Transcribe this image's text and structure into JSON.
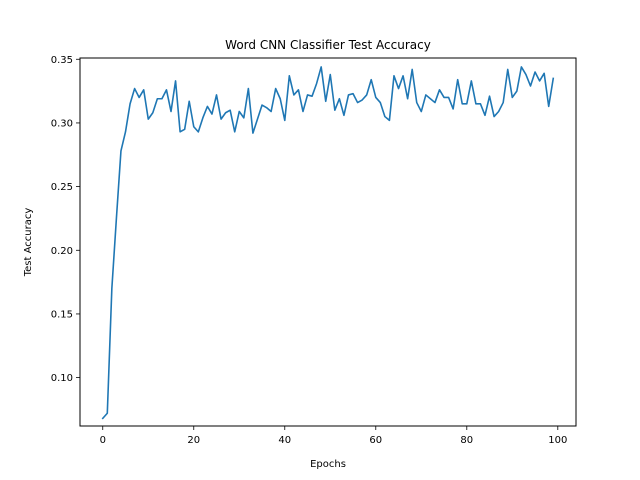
{
  "chart_data": {
    "type": "line",
    "title": "Word CNN Classifier Test Accuracy",
    "xlabel": "Epochs",
    "ylabel": "Test Accuracy",
    "xlim": [
      -5,
      104
    ],
    "ylim": [
      0.062,
      0.351
    ],
    "xticks": [
      0,
      20,
      40,
      60,
      80,
      100
    ],
    "yticks": [
      0.1,
      0.15,
      0.2,
      0.25,
      0.3,
      0.35
    ],
    "xtick_labels": [
      "0",
      "20",
      "40",
      "60",
      "80",
      "100"
    ],
    "ytick_labels": [
      "0.10",
      "0.15",
      "0.20",
      "0.25",
      "0.30",
      "0.35"
    ],
    "grid": false,
    "series": [
      {
        "color": "#1f77b4",
        "x": [
          0,
          1,
          2,
          3,
          4,
          5,
          6,
          7,
          8,
          9,
          10,
          11,
          12,
          13,
          14,
          15,
          16,
          17,
          18,
          19,
          20,
          21,
          22,
          23,
          24,
          25,
          26,
          27,
          28,
          29,
          30,
          31,
          32,
          33,
          34,
          35,
          36,
          37,
          38,
          39,
          40,
          41,
          42,
          43,
          44,
          45,
          46,
          47,
          48,
          49,
          50,
          51,
          52,
          53,
          54,
          55,
          56,
          57,
          58,
          59,
          60,
          61,
          62,
          63,
          64,
          65,
          66,
          67,
          68,
          69,
          70,
          71,
          72,
          73,
          74,
          75,
          76,
          77,
          78,
          79,
          80,
          81,
          82,
          83,
          84,
          85,
          86,
          87,
          88,
          89,
          90,
          91,
          92,
          93,
          94,
          95,
          96,
          97,
          98,
          99
        ],
        "values": [
          0.068,
          0.072,
          0.17,
          0.225,
          0.278,
          0.293,
          0.315,
          0.327,
          0.32,
          0.326,
          0.303,
          0.308,
          0.319,
          0.319,
          0.326,
          0.309,
          0.333,
          0.293,
          0.295,
          0.317,
          0.297,
          0.293,
          0.304,
          0.313,
          0.307,
          0.322,
          0.303,
          0.308,
          0.31,
          0.293,
          0.309,
          0.304,
          0.327,
          0.292,
          0.303,
          0.314,
          0.312,
          0.309,
          0.327,
          0.319,
          0.302,
          0.337,
          0.322,
          0.326,
          0.309,
          0.322,
          0.321,
          0.331,
          0.344,
          0.317,
          0.338,
          0.31,
          0.319,
          0.306,
          0.322,
          0.323,
          0.316,
          0.318,
          0.322,
          0.334,
          0.32,
          0.316,
          0.305,
          0.302,
          0.337,
          0.327,
          0.337,
          0.319,
          0.342,
          0.316,
          0.309,
          0.322,
          0.319,
          0.316,
          0.326,
          0.32,
          0.32,
          0.311,
          0.334,
          0.315,
          0.315,
          0.333,
          0.315,
          0.315,
          0.306,
          0.321,
          0.305,
          0.309,
          0.316,
          0.342,
          0.32,
          0.325,
          0.344,
          0.338,
          0.329,
          0.34,
          0.333,
          0.339,
          0.313,
          0.335
        ]
      }
    ]
  }
}
